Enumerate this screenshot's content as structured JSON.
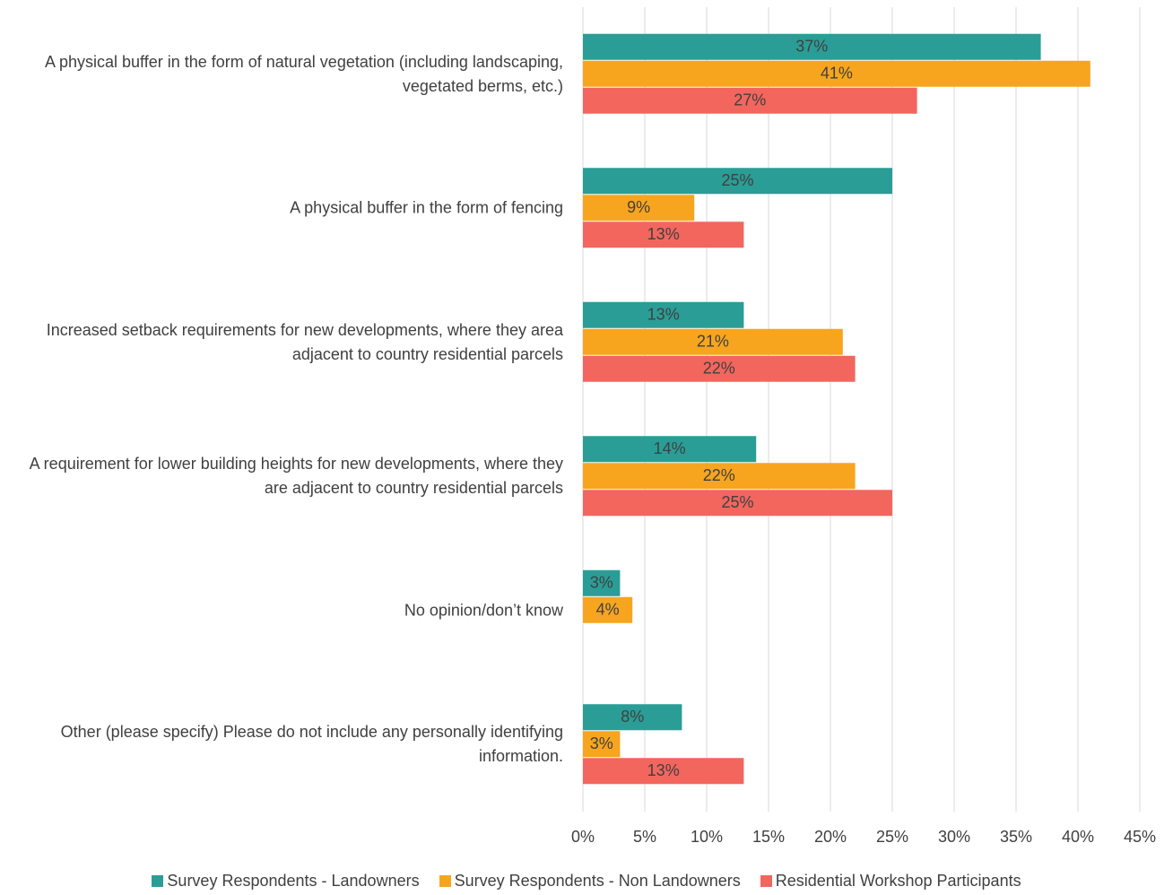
{
  "chart_data": {
    "type": "barh",
    "categories": [
      "A physical buffer in the form of natural vegetation (including landscaping, vegetated berms, etc.)",
      "A physical buffer in the form of fencing",
      "Increased setback requirements for new developments, where they area adjacent to country residential parcels",
      "A requirement for lower building heights for new developments, where they are adjacent to country residential parcels",
      "No opinion/don’t know",
      "Other (please specify) Please do not include any personally identifying information."
    ],
    "series": [
      {
        "name": "Survey Respondents - Landowners",
        "color": "#2a9d96",
        "values": [
          37,
          25,
          13,
          14,
          3,
          8
        ],
        "value_labels": [
          "37%",
          "25%",
          "13%",
          "14%",
          "3%",
          "8%"
        ]
      },
      {
        "name": "Survey Respondents - Non Landowners",
        "color": "#f7a51f",
        "values": [
          41,
          9,
          21,
          22,
          4,
          3
        ],
        "value_labels": [
          "41%",
          "9%",
          "21%",
          "22%",
          "4%",
          "3%"
        ]
      },
      {
        "name": "Residential Workshop Participants",
        "color": "#f2665e",
        "values": [
          27,
          13,
          22,
          25,
          null,
          13
        ],
        "value_labels": [
          "27%",
          "13%",
          "22%",
          "25%",
          null,
          "13%"
        ]
      }
    ],
    "xlim": [
      0,
      45
    ],
    "xticks": [
      {
        "value": 0,
        "label": "0%"
      },
      {
        "value": 5,
        "label": "5%"
      },
      {
        "value": 10,
        "label": "10%"
      },
      {
        "value": 15,
        "label": "15%"
      },
      {
        "value": 20,
        "label": "20%"
      },
      {
        "value": 25,
        "label": "25%"
      },
      {
        "value": 30,
        "label": "30%"
      },
      {
        "value": 35,
        "label": "35%"
      },
      {
        "value": 40,
        "label": "40%"
      },
      {
        "value": 45,
        "label": "45%"
      }
    ],
    "grid": true,
    "legend": "bottom"
  }
}
